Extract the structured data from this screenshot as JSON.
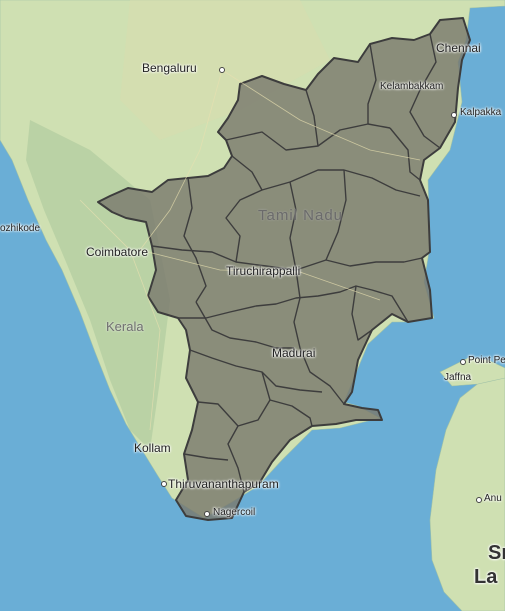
{
  "map": {
    "colors": {
      "sea": "#6aaed6",
      "land": "#cfe0b2",
      "highlight_fill": "#7a7a6e",
      "border": "#3d3d3d"
    },
    "labels": {
      "chennai": "Chennai",
      "bengaluru": "Bengaluru",
      "kelambakkam": "Kelambakkam",
      "kalpakkam": "Kalpakka",
      "tamil_nadu": "Tamil Nadu",
      "kozhikode": "ozhikode",
      "coimbatore": "Coimbatore",
      "tiruchirappalli": "Tiruchirappalli",
      "kerala": "Kerala",
      "point_pedro": "Point Pe",
      "jaffna": "Jaffna",
      "madurai": "Madurai",
      "kollam": "Kollam",
      "thiruvananthapuram": "Thiruvananthapuram",
      "nagercoil": "Nagercoil",
      "anu": "Anu",
      "sri": "Sr",
      "lanka": "La"
    }
  }
}
